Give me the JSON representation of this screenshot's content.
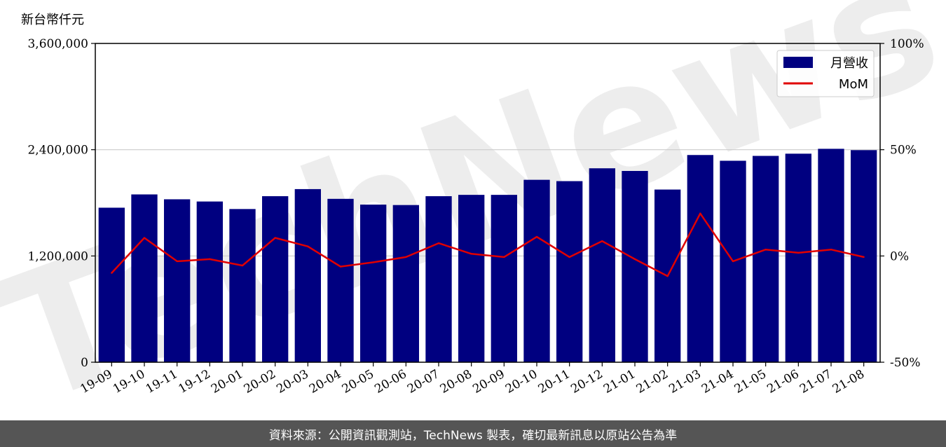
{
  "y_unit_label": "新台幣仟元",
  "watermark_text": "TechNews",
  "footer_text": "資料來源：公開資訊觀測站，TechNews 製表，確切最新訊息以原站公告為準",
  "colors": {
    "bar": "#000080",
    "line": "#e00000",
    "grid": "#cccccc",
    "footer_bg": "#555555"
  },
  "chart_data": {
    "type": "bar",
    "categories": [
      "19-09",
      "19-10",
      "19-11",
      "19-12",
      "20-01",
      "20-02",
      "20-03",
      "20-04",
      "20-05",
      "20-06",
      "20-07",
      "20-08",
      "20-09",
      "20-10",
      "20-11",
      "20-12",
      "21-01",
      "21-02",
      "21-03",
      "21-04",
      "21-05",
      "21-06",
      "21-07",
      "21-08"
    ],
    "series": [
      {
        "name": "月營收",
        "type": "bar",
        "axis": "left",
        "values": [
          1745000,
          1895000,
          1840000,
          1815000,
          1730000,
          1875000,
          1955000,
          1845000,
          1780000,
          1775000,
          1875000,
          1890000,
          1890000,
          2060000,
          2045000,
          2190000,
          2160000,
          1950000,
          2340000,
          2275000,
          2330000,
          2355000,
          2410000,
          2395000
        ]
      },
      {
        "name": "MoM",
        "type": "line",
        "axis": "right",
        "unit": "%",
        "values": [
          -8,
          8.5,
          -2.5,
          -1.5,
          -4.5,
          8.5,
          4.5,
          -5,
          -3,
          -0.5,
          6,
          1,
          -0.5,
          9,
          -0.5,
          7,
          -1.5,
          -9.5,
          20,
          -2.5,
          3,
          1.5,
          3,
          -0.5
        ]
      }
    ],
    "y_left": {
      "min": 0,
      "max": 3600000,
      "ticks": [
        "0",
        "1,200,000",
        "2,400,000",
        "3,600,000"
      ],
      "tick_values": [
        0,
        1200000,
        2400000,
        3600000
      ]
    },
    "y_right": {
      "min": -50,
      "max": 100,
      "ticks": [
        "-50%",
        "0%",
        "50%",
        "100%"
      ],
      "tick_values": [
        -50,
        0,
        50,
        100
      ]
    },
    "grid": "horizontal",
    "legend_position": "top-right"
  }
}
